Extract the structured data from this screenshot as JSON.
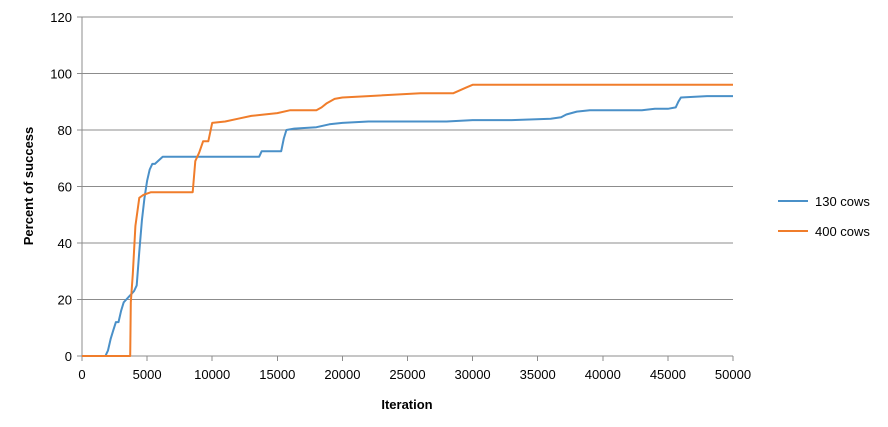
{
  "chart_data": {
    "type": "line",
    "title": "",
    "xlabel": "Iteration",
    "ylabel": "Percent of success",
    "xlim": [
      0,
      50000
    ],
    "ylim": [
      0,
      120
    ],
    "x_ticks": [
      0,
      5000,
      10000,
      15000,
      20000,
      25000,
      30000,
      35000,
      40000,
      45000,
      50000
    ],
    "y_ticks": [
      0,
      20,
      40,
      60,
      80,
      100,
      120
    ],
    "x_tick_labels": [
      "0",
      "5000",
      "10000",
      "15000",
      "20000",
      "25000",
      "30000",
      "35000",
      "40000",
      "45000",
      "50000"
    ],
    "y_tick_labels": [
      "0",
      "20",
      "40",
      "60",
      "80",
      "100",
      "120"
    ],
    "grid": "horizontal",
    "legend_position": "right",
    "series": [
      {
        "name": "130 cows",
        "color": "#4a90c8",
        "x": [
          0,
          1800,
          2000,
          2200,
          2400,
          2600,
          2800,
          3000,
          3200,
          3400,
          3600,
          3800,
          4000,
          4200,
          4400,
          4600,
          4800,
          5000,
          5200,
          5400,
          5600,
          6200,
          8000,
          13600,
          13800,
          15300,
          15500,
          15700,
          16300,
          18000,
          19000,
          20000,
          22000,
          25000,
          28000,
          30000,
          33000,
          36000,
          36800,
          37200,
          38000,
          39000,
          40000,
          43000,
          44000,
          45000,
          45600,
          45800,
          46000,
          48000,
          50000
        ],
        "y": [
          0,
          0,
          2,
          6,
          9,
          12,
          12,
          16,
          19,
          20,
          21,
          22,
          23,
          25,
          37,
          48,
          56,
          62,
          66,
          68,
          68,
          70.5,
          70.5,
          70.5,
          72.5,
          72.5,
          77,
          80,
          80.5,
          81,
          82,
          82.5,
          83,
          83,
          83,
          83.5,
          83.5,
          84,
          84.5,
          85.5,
          86.5,
          87,
          87,
          87,
          87.5,
          87.5,
          88,
          90,
          91.5,
          92,
          92
        ]
      },
      {
        "name": "400 cows",
        "color": "#f07d2b",
        "x": [
          0,
          3700,
          3750,
          3900,
          4100,
          4400,
          4700,
          5000,
          5300,
          5600,
          8500,
          8700,
          9000,
          9300,
          9700,
          10000,
          11000,
          12000,
          13000,
          14000,
          15000,
          16000,
          18000,
          18400,
          18800,
          19400,
          20000,
          22000,
          26000,
          28500,
          29000,
          29500,
          30000,
          35000,
          40000,
          45000,
          50000
        ],
        "y": [
          0,
          0,
          19,
          29,
          46,
          56,
          57,
          57.5,
          58,
          58,
          58,
          69,
          72,
          76,
          76,
          82.5,
          83,
          84,
          85,
          85.5,
          86,
          87,
          87,
          88,
          89.5,
          91,
          91.5,
          92,
          93,
          93,
          94,
          95,
          96,
          96,
          96,
          96,
          96
        ]
      }
    ]
  }
}
